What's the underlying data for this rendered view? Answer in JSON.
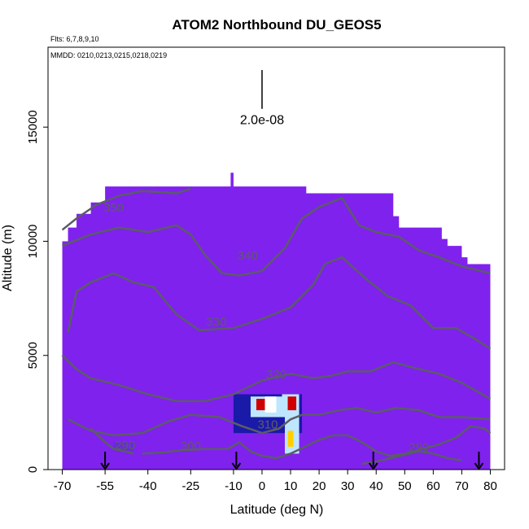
{
  "chart_data": {
    "type": "heatmap",
    "title": "ATOM2 Northbound DU_GEOS5",
    "flights_note": "Flts: 6,7,8,9,10",
    "dates_note": "MMDD: 0210,0213,0215,0218,0219",
    "xlabel": "Latitude (deg N)",
    "ylabel": "Altitude (m)",
    "xlim": [
      -75,
      85
    ],
    "ylim": [
      0,
      18500
    ],
    "x_ticks": [
      "-70",
      "-55",
      "-40",
      "-25",
      "-10",
      "0",
      "10",
      "20",
      "30",
      "40",
      "50",
      "60",
      "70",
      "80"
    ],
    "x_tick_values": [
      -70,
      -55,
      -40,
      -25,
      -10,
      0,
      10,
      20,
      30,
      40,
      50,
      60,
      70,
      80
    ],
    "y_ticks": [
      "0",
      "5000",
      "10000",
      "15000"
    ],
    "y_tick_values": [
      0,
      5000,
      10000,
      15000
    ],
    "scale_bar_label": "2.0e-08",
    "scale_bar_x": 0,
    "scale_bar_y_range": [
      15800,
      17500
    ],
    "background_color": "#7f22ee",
    "colormap": [
      "#7f22ee",
      "#1a1aa8",
      "#3a7fe0",
      "#bfe6ff",
      "#ffffff",
      "#ffd000",
      "#d00000"
    ],
    "profile_top": [
      {
        "x": -70,
        "top": 10000
      },
      {
        "x": -68,
        "top": 10600
      },
      {
        "x": -65,
        "top": 11200
      },
      {
        "x": -60,
        "top": 11700
      },
      {
        "x": -55,
        "top": 12400
      },
      {
        "x": -25,
        "top": 12400
      },
      {
        "x": -12,
        "top": 12400
      },
      {
        "x": -11,
        "top": 13000
      },
      {
        "x": -10,
        "top": 12400
      },
      {
        "x": 15,
        "top": 12400
      },
      {
        "x": 15.5,
        "top": 12100
      },
      {
        "x": 45,
        "top": 12100
      },
      {
        "x": 46,
        "top": 11100
      },
      {
        "x": 48,
        "top": 10600
      },
      {
        "x": 62,
        "top": 10600
      },
      {
        "x": 63,
        "top": 10100
      },
      {
        "x": 65,
        "top": 9800
      },
      {
        "x": 70,
        "top": 9300
      },
      {
        "x": 72,
        "top": 9000
      },
      {
        "x": 80,
        "top": 8900
      }
    ],
    "hotspots": [
      {
        "x": -10,
        "y": 1600,
        "w": 24,
        "h": 1700,
        "level": 1
      },
      {
        "x": -4,
        "y": 2300,
        "w": 13,
        "h": 900,
        "level": 3
      },
      {
        "x": -2,
        "y": 2600,
        "w": 3,
        "h": 500,
        "level": 6
      },
      {
        "x": 1,
        "y": 2500,
        "w": 4,
        "h": 700,
        "level": 4
      },
      {
        "x": 7,
        "y": 2300,
        "w": 6,
        "h": 1000,
        "level": 3
      },
      {
        "x": 9,
        "y": 2600,
        "w": 3,
        "h": 600,
        "level": 6
      },
      {
        "x": 8,
        "y": 700,
        "w": 5,
        "h": 1600,
        "level": 3
      },
      {
        "x": 9,
        "y": 1000,
        "w": 2,
        "h": 700,
        "level": 5
      },
      {
        "x": -52,
        "y": 800,
        "w": 7,
        "h": 400,
        "level": 0.5
      }
    ],
    "contours": [
      {
        "label": "350",
        "label_pos": [
          -52,
          11300
        ],
        "points": [
          [
            -70,
            10500
          ],
          [
            -65,
            11000
          ],
          [
            -58,
            11600
          ],
          [
            -50,
            12000
          ],
          [
            -42,
            12200
          ],
          [
            -30,
            12100
          ],
          [
            -25,
            12300
          ]
        ]
      },
      {
        "label": "340",
        "label_pos": [
          -5,
          9200
        ],
        "points": [
          [
            -70,
            9800
          ],
          [
            -60,
            10300
          ],
          [
            -50,
            10600
          ],
          [
            -40,
            10400
          ],
          [
            -30,
            10700
          ],
          [
            -25,
            10300
          ],
          [
            -20,
            9400
          ],
          [
            -14,
            8600
          ],
          [
            -8,
            8500
          ],
          [
            0,
            8700
          ],
          [
            8,
            9700
          ],
          [
            14,
            11000
          ],
          [
            20,
            11500
          ],
          [
            28,
            11900
          ],
          [
            34,
            10700
          ],
          [
            40,
            10400
          ],
          [
            48,
            10200
          ],
          [
            55,
            9600
          ],
          [
            62,
            9300
          ],
          [
            70,
            8900
          ],
          [
            80,
            8600
          ]
        ]
      },
      {
        "label": "330",
        "label_pos": [
          -16,
          6300
        ],
        "points": [
          [
            -68,
            6000
          ],
          [
            -65,
            7800
          ],
          [
            -60,
            8200
          ],
          [
            -52,
            8600
          ],
          [
            -45,
            8200
          ],
          [
            -38,
            8000
          ],
          [
            -30,
            6800
          ],
          [
            -22,
            6100
          ],
          [
            -10,
            6200
          ],
          [
            0,
            6600
          ],
          [
            10,
            7100
          ],
          [
            18,
            8100
          ],
          [
            22,
            9000
          ],
          [
            28,
            9300
          ],
          [
            36,
            8400
          ],
          [
            44,
            7600
          ],
          [
            52,
            7200
          ],
          [
            60,
            6200
          ],
          [
            68,
            6200
          ],
          [
            75,
            5700
          ],
          [
            80,
            5300
          ]
        ]
      },
      {
        "label": "320",
        "label_pos": [
          5,
          4000
        ],
        "points": [
          [
            -70,
            5000
          ],
          [
            -65,
            4400
          ],
          [
            -60,
            4000
          ],
          [
            -50,
            3700
          ],
          [
            -40,
            3300
          ],
          [
            -30,
            3000
          ],
          [
            -20,
            3000
          ],
          [
            -10,
            3300
          ],
          [
            0,
            3900
          ],
          [
            10,
            4200
          ],
          [
            18,
            4000
          ],
          [
            24,
            4100
          ],
          [
            30,
            4300
          ],
          [
            38,
            4300
          ],
          [
            46,
            4700
          ],
          [
            55,
            4400
          ],
          [
            62,
            4200
          ],
          [
            70,
            3800
          ],
          [
            80,
            3100
          ]
        ]
      },
      {
        "label": "310",
        "label_pos": [
          2,
          1800
        ],
        "points": [
          [
            -68,
            2200
          ],
          [
            -60,
            1700
          ],
          [
            -52,
            1500
          ],
          [
            -42,
            1600
          ],
          [
            -33,
            2100
          ],
          [
            -25,
            2400
          ],
          [
            -15,
            2300
          ],
          [
            -7,
            1900
          ],
          [
            0,
            1600
          ],
          [
            6,
            1800
          ],
          [
            10,
            2200
          ],
          [
            14,
            2400
          ],
          [
            20,
            2400
          ],
          [
            27,
            2600
          ],
          [
            33,
            2700
          ],
          [
            40,
            2500
          ],
          [
            47,
            2700
          ],
          [
            55,
            2600
          ],
          [
            62,
            2300
          ],
          [
            70,
            2300
          ],
          [
            80,
            2200
          ]
        ]
      },
      {
        "label": "300",
        "label_pos": [
          -25,
          850
        ],
        "points": [
          [
            -42,
            700
          ],
          [
            -35,
            750
          ],
          [
            -28,
            850
          ],
          [
            -20,
            900
          ],
          [
            -12,
            900
          ],
          [
            -8,
            1200
          ],
          [
            -4,
            800
          ],
          [
            0,
            600
          ],
          [
            5,
            500
          ],
          [
            10,
            700
          ],
          [
            15,
            1000
          ],
          [
            20,
            1300
          ],
          [
            25,
            1500
          ],
          [
            30,
            1500
          ],
          [
            35,
            1200
          ],
          [
            40,
            800
          ],
          [
            45,
            600
          ],
          [
            50,
            700
          ],
          [
            56,
            900
          ],
          [
            62,
            1100
          ],
          [
            68,
            1400
          ],
          [
            73,
            1900
          ],
          [
            78,
            1800
          ],
          [
            80,
            1600
          ]
        ]
      },
      {
        "label": "290",
        "label_pos": [
          -48,
          900
        ],
        "points": [
          [
            -60,
            1800
          ],
          [
            -55,
            1200
          ],
          [
            -52,
            900
          ],
          [
            -48,
            800
          ],
          [
            -45,
            700
          ]
        ]
      },
      {
        "label": "290",
        "label_pos": [
          55,
          800
        ],
        "points": [
          [
            35,
            250
          ],
          [
            40,
            350
          ],
          [
            45,
            500
          ],
          [
            50,
            650
          ],
          [
            55,
            800
          ],
          [
            60,
            700
          ],
          [
            65,
            500
          ],
          [
            70,
            400
          ]
        ]
      }
    ],
    "arrows_x": [
      -55,
      -9,
      39,
      76
    ]
  }
}
